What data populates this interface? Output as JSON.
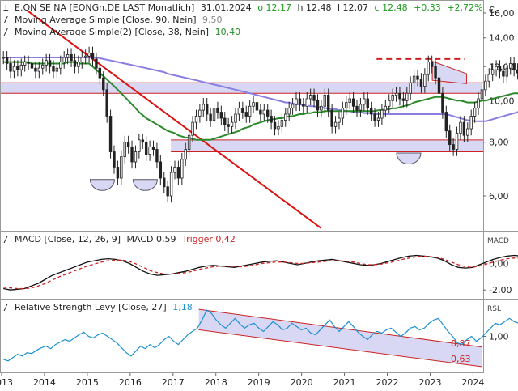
{
  "header": {
    "instrument": "E.ON  SE NA [EONGn.DE LAST Monatlich]",
    "date": "31.01.2024",
    "open": "o 12,17",
    "high": "h 12,48",
    "low": "l 12,07",
    "close": "c 12,48",
    "change": "+0,33",
    "change_pct": "+2,72%",
    "currency": "€"
  },
  "legend": {
    "sma90_label": "Moving Average Simple  [Close, 90, Nein]",
    "sma90_value": "9,50",
    "sma38_label": "Moving Average Simple(2)  [Close, 38, Nein]",
    "sma38_value": "10,40",
    "macd_label": "MACD  [Close, 12, 26, 9]",
    "macd_value": "MACD 0,59",
    "trigger_value": "Trigger 0,42",
    "rsl_label": "Relative Strength Levy  [Close, 27]",
    "rsl_value": "1,18"
  },
  "panel_labels": {
    "macd": "MACD",
    "rsl": "RSL"
  },
  "colors": {
    "candle": "#222222",
    "sma90": "#8a7fe0",
    "sma38": "#2a8a2a",
    "trendline": "#dd1111",
    "hline": "#cc2222",
    "zone_fill": "#d8d8f4",
    "macd_line": "#111111",
    "trigger_line": "#cc2222",
    "rsl_line": "#1e90d0",
    "channel_fill": "#d8d8f4"
  },
  "chart_data": [
    {
      "type": "candlestick",
      "title": "E.ON  SE NA [EONGn.DE LAST Monatlich]",
      "y_scale": "log",
      "ylim": [
        5.0,
        17.0
      ],
      "y_ticks": [
        6,
        8,
        10,
        12,
        14,
        16
      ],
      "y_tick_labels": [
        "6,00",
        "8,00",
        "10,00",
        "12,00",
        "14,00",
        "16,00"
      ],
      "x_ticks": [
        2013,
        2014,
        2015,
        2016,
        2017,
        2018,
        2019,
        2020,
        2021,
        2022,
        2023,
        2024
      ],
      "x_tick_labels": [
        "2013",
        "2014",
        "2015",
        "2016",
        "2017",
        "2018",
        "2019",
        "2020",
        "2021",
        "2022",
        "2023",
        "2024"
      ],
      "xlim": [
        2013.0,
        2024.2
      ],
      "close": [
        12.6,
        12.2,
        11.7,
        12.0,
        11.8,
        12.1,
        12.3,
        12.2,
        11.9,
        11.7,
        11.9,
        12.1,
        12.4,
        12.0,
        11.7,
        11.9,
        12.3,
        12.6,
        12.8,
        12.4,
        12.0,
        12.3,
        12.6,
        12.7,
        12.9,
        12.5,
        11.9,
        11.3,
        10.6,
        9.2,
        7.6,
        7.0,
        6.6,
        7.4,
        8.0,
        7.8,
        7.2,
        7.6,
        8.1,
        8.0,
        7.5,
        7.8,
        7.7,
        7.2,
        6.6,
        6.3,
        6.0,
        6.8,
        7.0,
        6.6,
        7.3,
        7.7,
        8.3,
        8.9,
        9.2,
        9.5,
        9.8,
        9.3,
        9.0,
        9.6,
        9.4,
        9.1,
        8.8,
        8.7,
        8.9,
        9.3,
        9.6,
        9.4,
        9.2,
        9.7,
        9.9,
        9.5,
        9.3,
        9.5,
        9.2,
        8.9,
        8.6,
        8.7,
        9.0,
        9.3,
        9.6,
        9.8,
        10.1,
        9.8,
        9.7,
        10.1,
        10.3,
        10.0,
        9.5,
        9.7,
        10.3,
        9.5,
        8.7,
        8.9,
        9.1,
        9.6,
        9.9,
        10.1,
        9.7,
        9.5,
        9.8,
        10.1,
        9.6,
        9.3,
        9.0,
        9.1,
        9.5,
        9.7,
        10.0,
        10.3,
        10.4,
        10.1,
        10.0,
        10.4,
        11.0,
        11.4,
        11.2,
        10.8,
        11.5,
        12.3,
        12.0,
        11.3,
        10.4,
        9.4,
        8.5,
        7.9,
        7.7,
        8.4,
        8.9,
        8.3,
        8.6,
        9.2,
        9.6,
        10.1,
        10.6,
        11.1,
        11.5,
        11.8,
        12.0,
        11.7,
        11.4,
        11.9,
        12.2,
        11.8,
        11.6,
        11.9,
        12.15,
        12.48
      ],
      "sma38": [
        12.3,
        12.3,
        12.3,
        12.3,
        12.3,
        12.3,
        12.3,
        12.3,
        12.2,
        12.2,
        12.2,
        12.2,
        12.2,
        12.2,
        12.2,
        12.2,
        12.2,
        12.2,
        12.3,
        12.3,
        12.3,
        12.2,
        12.2,
        12.2,
        12.2,
        12.0,
        11.8,
        11.6,
        11.4,
        11.2,
        11.0,
        10.8,
        10.6,
        10.4,
        10.2,
        10.0,
        9.8,
        9.6,
        9.4,
        9.25,
        9.1,
        9.0,
        8.9,
        8.8,
        8.7,
        8.6,
        8.5,
        8.45,
        8.4,
        8.3,
        8.25,
        8.2,
        8.2,
        8.15,
        8.1,
        8.1,
        8.1,
        8.1,
        8.1,
        8.15,
        8.2,
        8.25,
        8.3,
        8.35,
        8.4,
        8.45,
        8.5,
        8.6,
        8.65,
        8.7,
        8.8,
        8.85,
        8.9,
        8.95,
        9.0,
        9.05,
        9.05,
        9.1,
        9.1,
        9.15,
        9.2,
        9.2,
        9.25,
        9.3,
        9.3,
        9.35,
        9.35,
        9.4,
        9.4,
        9.4,
        9.45,
        9.45,
        9.45,
        9.45,
        9.45,
        9.45,
        9.45,
        9.45,
        9.45,
        9.45,
        9.45,
        9.45,
        9.45,
        9.45,
        9.45,
        9.5,
        9.5,
        9.55,
        9.55,
        9.6,
        9.6,
        9.65,
        9.7,
        9.75,
        9.8,
        9.9,
        9.95,
        10.0,
        10.05,
        10.1,
        10.15,
        10.2,
        10.2,
        10.2,
        10.15,
        10.1,
        10.05,
        10.0,
        10.0,
        9.95,
        9.9,
        9.9,
        9.9,
        9.95,
        10.0,
        10.0,
        10.05,
        10.1,
        10.15,
        10.2,
        10.25,
        10.3,
        10.35,
        10.4,
        10.4,
        10.4
      ],
      "sma90": [
        12.6,
        12.6,
        12.6,
        12.6,
        12.6,
        12.6,
        12.6,
        12.6,
        12.6,
        12.6,
        12.6,
        12.6,
        12.6,
        12.6,
        12.6,
        12.6,
        12.6,
        12.6,
        12.6,
        12.6,
        12.6,
        12.6,
        12.6,
        12.6,
        12.6,
        12.6,
        12.6,
        12.55,
        12.5,
        12.45,
        12.4,
        12.35,
        12.3,
        12.25,
        12.2,
        12.15,
        12.1,
        12.05,
        12.0,
        11.95,
        11.9,
        11.85,
        11.8,
        11.75,
        11.7,
        11.65,
        11.55,
        11.5,
        11.45,
        11.4,
        11.35,
        11.3,
        11.25,
        11.2,
        11.15,
        11.1,
        11.05,
        11.0,
        10.95,
        10.9,
        10.85,
        10.8,
        10.75,
        10.7,
        10.65,
        10.6,
        10.55,
        10.5,
        10.45,
        10.4,
        10.35,
        10.3,
        10.25,
        10.2,
        10.15,
        10.1,
        10.05,
        10.0,
        9.95,
        9.9,
        9.9,
        9.85,
        9.8,
        9.8,
        9.75,
        9.75,
        9.7,
        9.7,
        9.65,
        9.65,
        9.6,
        9.6,
        9.55,
        9.55,
        9.5,
        9.5,
        9.45,
        9.45,
        9.4,
        9.4,
        9.4,
        9.35,
        9.35,
        9.35,
        9.3,
        9.3,
        9.3,
        9.3,
        9.3,
        9.3,
        9.3,
        9.3,
        9.3,
        9.3,
        9.3,
        9.3,
        9.3,
        9.3,
        9.3,
        9.3,
        9.3,
        9.3,
        9.3,
        9.3,
        9.3,
        9.25,
        9.2,
        9.15,
        9.1,
        9.05,
        9.0,
        9.0,
        8.95,
        8.95,
        8.95,
        8.95,
        9.0,
        9.05,
        9.1,
        9.15,
        9.2,
        9.25,
        9.3,
        9.35,
        9.4,
        9.45,
        9.5,
        9.5
      ],
      "horizontal_lines": [
        12.5,
        11.0,
        10.4,
        8.1,
        7.6
      ],
      "resistance_dashed": 12.5
    },
    {
      "type": "line",
      "title": "MACD  [Close, 12, 26, 9]",
      "ylim": [
        -2.6,
        2.4
      ],
      "y_ticks": [
        -2,
        0
      ],
      "y_tick_labels": [
        "-2,00",
        "0,00"
      ],
      "series": [
        {
          "name": "MACD",
          "values": [
            -1.9,
            -2.0,
            -1.95,
            -1.9,
            -1.7,
            -1.5,
            -1.2,
            -0.9,
            -0.7,
            -0.5,
            -0.3,
            -0.1,
            0.1,
            0.2,
            0.3,
            0.35,
            0.3,
            0.2,
            0.0,
            -0.3,
            -0.6,
            -0.8,
            -0.9,
            -0.85,
            -0.8,
            -0.7,
            -0.6,
            -0.45,
            -0.3,
            -0.2,
            -0.15,
            -0.2,
            -0.25,
            -0.3,
            -0.2,
            -0.1,
            0.0,
            0.1,
            0.15,
            0.2,
            0.1,
            0.0,
            -0.1,
            0.0,
            0.1,
            0.2,
            0.25,
            0.3,
            0.2,
            0.1,
            0.0,
            -0.1,
            -0.15,
            -0.1,
            0.0,
            0.15,
            0.3,
            0.45,
            0.55,
            0.6,
            0.55,
            0.5,
            0.4,
            0.2,
            -0.1,
            -0.3,
            -0.35,
            -0.3,
            -0.1,
            0.1,
            0.3,
            0.45,
            0.55,
            0.6,
            0.55,
            0.59
          ]
        },
        {
          "name": "Trigger",
          "values": [
            -1.8,
            -1.85,
            -1.9,
            -1.9,
            -1.85,
            -1.7,
            -1.5,
            -1.25,
            -1.0,
            -0.8,
            -0.6,
            -0.4,
            -0.2,
            -0.05,
            0.1,
            0.2,
            0.25,
            0.25,
            0.15,
            -0.05,
            -0.3,
            -0.55,
            -0.7,
            -0.8,
            -0.8,
            -0.75,
            -0.7,
            -0.6,
            -0.45,
            -0.35,
            -0.25,
            -0.2,
            -0.2,
            -0.25,
            -0.25,
            -0.2,
            -0.1,
            0.0,
            0.05,
            0.1,
            0.1,
            0.05,
            0.0,
            0.0,
            0.05,
            0.1,
            0.15,
            0.2,
            0.2,
            0.15,
            0.1,
            0.0,
            -0.1,
            -0.1,
            -0.05,
            0.05,
            0.15,
            0.3,
            0.4,
            0.5,
            0.55,
            0.5,
            0.45,
            0.3,
            0.1,
            -0.1,
            -0.25,
            -0.3,
            -0.2,
            -0.05,
            0.1,
            0.25,
            0.35,
            0.4,
            0.42,
            0.42
          ]
        }
      ]
    },
    {
      "type": "line",
      "title": "Relative Strength Levy  [Close, 27]",
      "ylim": [
        0.55,
        1.45
      ],
      "y_ticks": [
        1.0
      ],
      "y_tick_labels": [
        "1,00"
      ],
      "annotations": [
        "0,87",
        "0,63"
      ],
      "series": [
        {
          "name": "RSL",
          "values": [
            0.72,
            0.7,
            0.74,
            0.78,
            0.76,
            0.8,
            0.79,
            0.83,
            0.86,
            0.88,
            0.85,
            0.9,
            0.93,
            0.96,
            0.94,
            0.98,
            1.02,
            1.05,
            1.0,
            0.98,
            1.02,
            1.04,
            1.0,
            0.96,
            0.92,
            0.86,
            0.8,
            0.76,
            0.82,
            0.88,
            0.85,
            0.9,
            0.86,
            0.9,
            0.96,
            1.0,
            0.94,
            0.9,
            0.96,
            1.02,
            1.06,
            1.1,
            1.2,
            1.32,
            1.28,
            1.2,
            1.14,
            1.1,
            1.16,
            1.22,
            1.15,
            1.1,
            1.14,
            1.16,
            1.1,
            1.06,
            1.12,
            1.18,
            1.14,
            1.08,
            1.1,
            1.16,
            1.12,
            1.08,
            1.1,
            1.04,
            1.02,
            1.08,
            1.14,
            1.2,
            1.12,
            1.06,
            1.12,
            1.18,
            1.12,
            1.05,
            1.0,
            0.96,
            1.02,
            1.06,
            1.04,
            1.08,
            1.1,
            1.05,
            1.0,
            1.04,
            1.1,
            1.12,
            1.08,
            1.1,
            1.16,
            1.2,
            1.22,
            1.14,
            1.06,
            1.0,
            0.92,
            0.9,
            0.96,
            1.0,
            0.94,
            0.98,
            1.04,
            1.1,
            1.16,
            1.14,
            1.18,
            1.22,
            1.18,
            1.16,
            1.2,
            1.18
          ]
        }
      ]
    }
  ]
}
